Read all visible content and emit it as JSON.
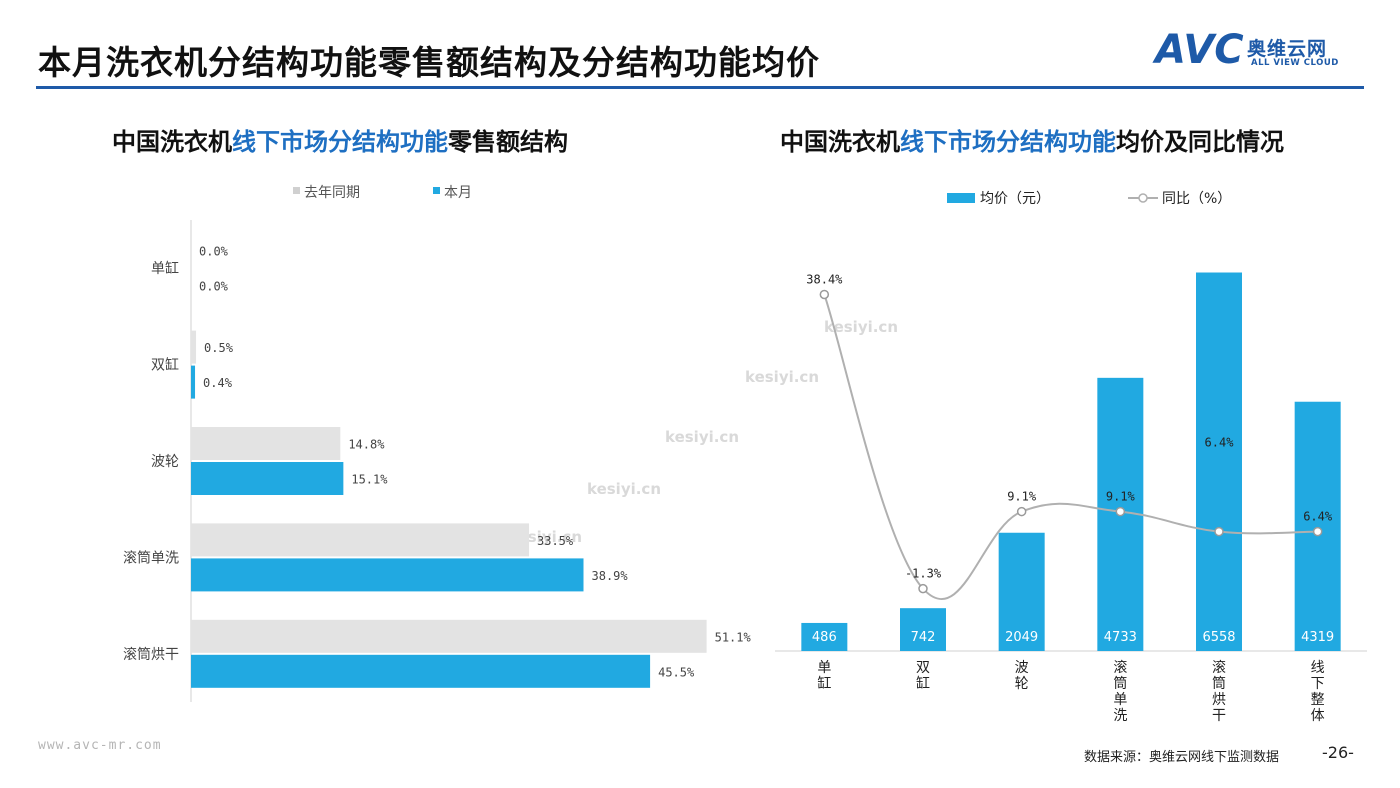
{
  "page": {
    "title": "本月洗衣机分结构功能零售额结构及分结构功能均价",
    "logo_text": "AVC",
    "logo_cn": "奥维云网",
    "logo_en": "ALL VIEW CLOUD",
    "footer_url": "www.avc-mr.com",
    "source": "数据来源：奥维云网线下监测数据",
    "page_number": "-26-",
    "watermark": "kesiyi.cn",
    "accent_color": "#21a9e1",
    "gray_color": "#e3e3e3",
    "title_rule_color": "#1e5aa8"
  },
  "left_title": {
    "pre": "中国洗衣机",
    "hl": "线下市场分结构功能",
    "post": "零售额结构"
  },
  "right_title": {
    "pre": "中国洗衣机",
    "hl": "线下市场分结构功能",
    "post": "均价及同比情况"
  },
  "chart_data": [
    {
      "type": "bar",
      "orientation": "horizontal",
      "categories": [
        "单缸",
        "双缸",
        "波轮",
        "滚筒单洗",
        "滚筒烘干"
      ],
      "series": [
        {
          "name": "去年同期",
          "values": [
            0.0,
            0.5,
            14.8,
            33.5,
            51.1
          ],
          "labels": [
            "0.0%",
            "0.5%",
            "14.8%",
            "33.5%",
            "51.1%"
          ],
          "color": "#e3e3e3"
        },
        {
          "name": "本月",
          "values": [
            0.0,
            0.4,
            15.1,
            38.9,
            45.5
          ],
          "labels": [
            "0.0%",
            "0.4%",
            "15.1%",
            "38.9%",
            "45.5%"
          ],
          "color": "#21a9e1"
        }
      ],
      "xlim": [
        0,
        70
      ],
      "legend": "top"
    },
    {
      "type": "bar",
      "categories": [
        "单缸",
        "双缸",
        "波轮",
        "滚筒单洗",
        "滚筒烘干",
        "线下整体"
      ],
      "series": [
        {
          "name": "均价（元）",
          "type": "bar",
          "values": [
            486,
            742,
            2049,
            4733,
            6558,
            4319
          ],
          "labels": [
            "486",
            "742",
            "2049",
            "4733",
            "6558",
            "4319"
          ],
          "color": "#21a9e1"
        },
        {
          "name": "同比（%）",
          "type": "line",
          "values": [
            38.4,
            -1.3,
            9.1,
            9.1,
            6.4,
            6.4
          ],
          "labels": [
            "38.4%",
            "-1.3%",
            "9.1%",
            "9.1%",
            "6.4%",
            "6.4%"
          ],
          "color": "#b0b0b0"
        }
      ],
      "ylim_bar": [
        0,
        7000
      ],
      "legend": "top"
    }
  ]
}
